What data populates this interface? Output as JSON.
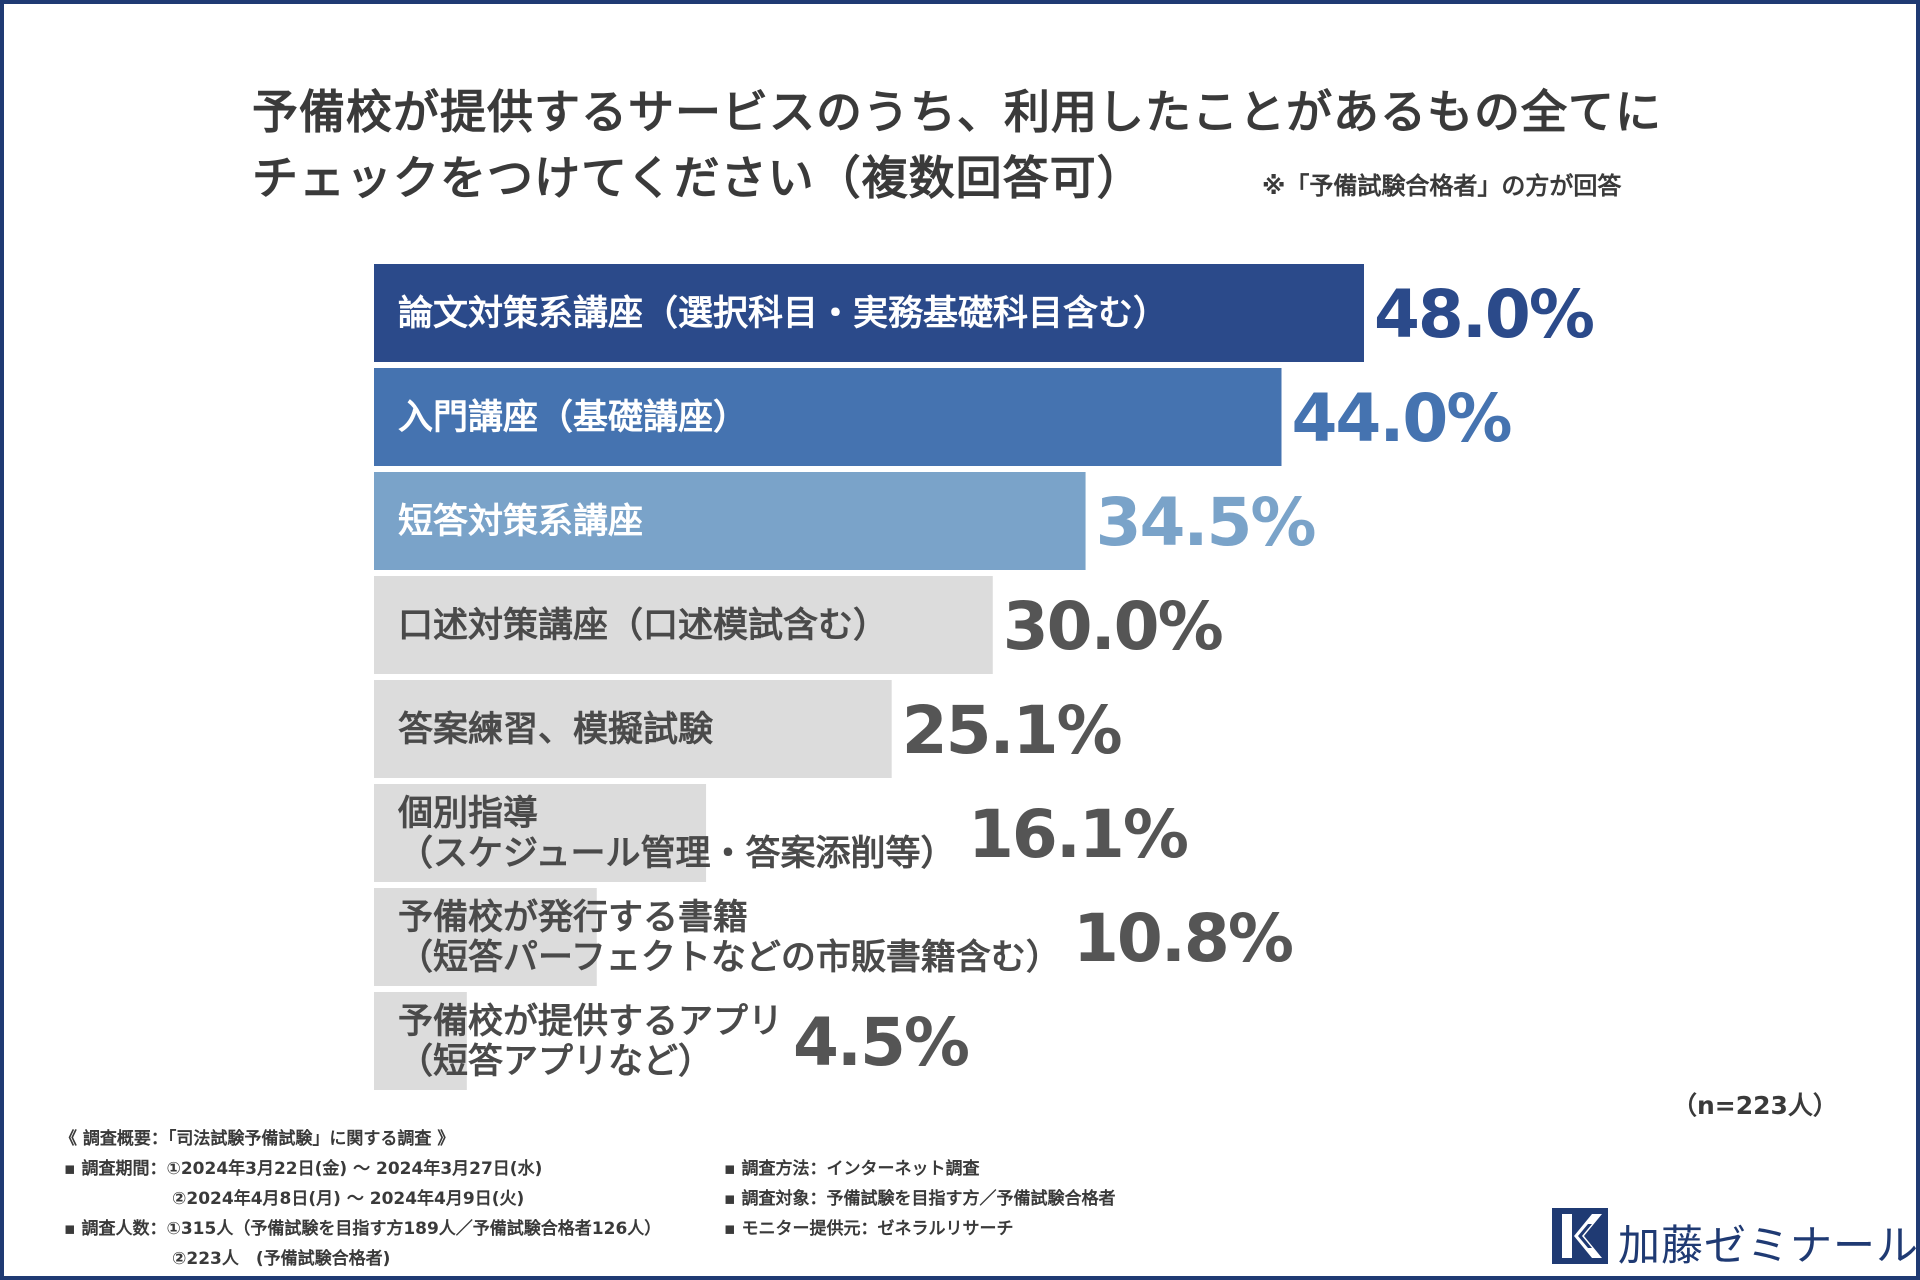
{
  "title_line1": "予備校が提供するサービスのうち、利用したことがあるもの全てに",
  "title_line2": "チェックをつけてください（複数回答可）",
  "note": "※「予備試験合格者」の方が回答",
  "chart_data": {
    "type": "bar",
    "orientation": "horizontal",
    "title": "予備校が提供するサービスのうち、利用したことがあるもの全てにチェックをつけてください（複数回答可）",
    "unit": "%",
    "categories": [
      [
        "論文対策系講座（選択科目・実務基礎科目含む）"
      ],
      [
        "入門講座（基礎講座）"
      ],
      [
        "短答対策系講座"
      ],
      [
        "口述対策講座（口述模試含む）"
      ],
      [
        "答案練習、模擬試験"
      ],
      [
        "個別指導",
        "（スケジュール管理・答案添削等）"
      ],
      [
        "予備校が発行する書籍",
        "（短答パーフェクトなどの市販書籍含む）"
      ],
      [
        "予備校が提供するアプリ",
        "（短答アプリなど）"
      ]
    ],
    "values": [
      48.0,
      44.0,
      34.5,
      30.0,
      25.1,
      16.1,
      10.8,
      4.5
    ],
    "value_labels": [
      "48.0%",
      "44.0%",
      "34.5%",
      "30.0%",
      "25.1%",
      "16.1%",
      "10.8%",
      "4.5%"
    ],
    "bar_colors": [
      "#2b4a8a",
      "#4573b0",
      "#7aa3c9",
      "#dcdcdc",
      "#dcdcdc",
      "#dcdcdc",
      "#dcdcdc",
      "#dcdcdc"
    ],
    "label_colors": [
      "#ffffff",
      "#ffffff",
      "#ffffff",
      "#4a4a4a",
      "#4a4a4a",
      "#4a4a4a",
      "#4a4a4a",
      "#4a4a4a"
    ],
    "value_colors": [
      "#2b4a8a",
      "#4573b0",
      "#7aa3c9",
      "#555555",
      "#555555",
      "#555555",
      "#555555",
      "#555555"
    ],
    "xlim": [
      0,
      48
    ],
    "grid": false,
    "legend": "none"
  },
  "n_label": "（n=223人）",
  "footer": {
    "heading": "《 調査概要：「司法試験予備試験」に関する調査 》",
    "period1": "▪ 調査期間：①2024年3月22日(金) ～ 2024年3月27日(水)",
    "period2": "②2024年4月8日(月) ～ 2024年4月9日(火)",
    "people1": "▪ 調査人数：①315人（予備試験を目指す方189人／予備試験合格者126人）",
    "people2": "②223人　(予備試験合格者)",
    "method": "▪ 調査方法：インターネット調査",
    "target": "▪ 調査対象：予備試験を目指す方／予備試験合格者",
    "provider": "▪ モニター提供元：ゼネラルリサーチ"
  },
  "logo": {
    "text": "加藤ゼミナール",
    "color": "#1f3a73"
  }
}
